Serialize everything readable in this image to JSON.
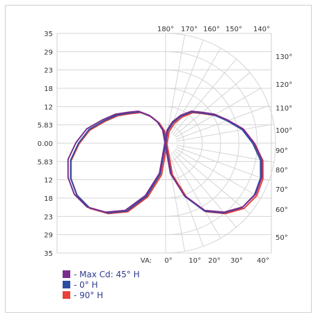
{
  "chart_data": {
    "type": "polar",
    "y_tick_labels": [
      "35",
      "29",
      "23",
      "18",
      "12",
      "5.83",
      "0.00",
      "5.83",
      "12",
      "18",
      "23",
      "29",
      "35"
    ],
    "vertical_angle_prefix": "VA:",
    "bottom_angle_labels": [
      "0°",
      "10°",
      "20°",
      "30°",
      "40°"
    ],
    "top_angle_labels": [
      "180°",
      "170°",
      "160°",
      "150°",
      "140°"
    ],
    "right_angle_labels": [
      "130°",
      "120°",
      "110°",
      "100°",
      "90°",
      "80°",
      "70°",
      "60°",
      "50°"
    ],
    "rlim": [
      0,
      35
    ],
    "grid": true,
    "legend_position": "bottom-left",
    "series": [
      {
        "name": "- Max Cd: 45° H",
        "color": "#7b2d8e",
        "points": [
          [
            0,
            0
          ],
          [
            10,
            10
          ],
          [
            20,
            18
          ],
          [
            30,
            25
          ],
          [
            40,
            29
          ],
          [
            50,
            32
          ],
          [
            60,
            33
          ],
          [
            70,
            32.5
          ],
          [
            80,
            31
          ],
          [
            90,
            28
          ],
          [
            100,
            25
          ],
          [
            110,
            21
          ],
          [
            120,
            18
          ],
          [
            130,
            15
          ],
          [
            140,
            13
          ],
          [
            150,
            10
          ],
          [
            160,
            7
          ],
          [
            170,
            4
          ],
          [
            180,
            0
          ]
        ],
        "mirror_points": [
          [
            180,
            0
          ],
          [
            190,
            4
          ],
          [
            200,
            7
          ],
          [
            210,
            10
          ],
          [
            220,
            13
          ],
          [
            230,
            15
          ],
          [
            240,
            18
          ],
          [
            250,
            21
          ],
          [
            260,
            25
          ],
          [
            270,
            28
          ],
          [
            280,
            31
          ],
          [
            290,
            32.5
          ],
          [
            300,
            33
          ],
          [
            310,
            32
          ],
          [
            320,
            29
          ],
          [
            330,
            25
          ],
          [
            340,
            18
          ],
          [
            350,
            10
          ]
        ]
      },
      {
        "name": "- 0° H",
        "color": "#2c4ea0"
      },
      {
        "name": "- 90° H",
        "color": "#e8413a"
      }
    ]
  }
}
